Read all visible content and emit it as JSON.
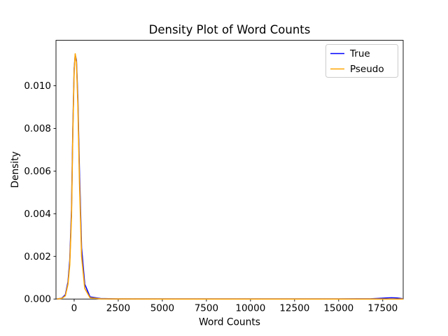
{
  "chart_data": {
    "type": "line",
    "title": "Density Plot of Word Counts",
    "xlabel": "Word Counts",
    "ylabel": "Density",
    "xlim": [
      -1030,
      18660
    ],
    "ylim": [
      0,
      0.01213
    ],
    "grid": false,
    "legend_position": "upper right",
    "xticks": {
      "values": [
        0,
        2500,
        5000,
        7500,
        10000,
        12500,
        15000,
        17500
      ],
      "labels": [
        "0",
        "2500",
        "5000",
        "7500",
        "10000",
        "12500",
        "15000",
        "17500"
      ]
    },
    "yticks": {
      "values": [
        0.0,
        0.002,
        0.004,
        0.006,
        0.008,
        0.01
      ],
      "labels": [
        "0.000",
        "0.002",
        "0.004",
        "0.006",
        "0.008",
        "0.010"
      ]
    },
    "series": [
      {
        "name": "True",
        "color": "#0000ff",
        "x": [
          -980,
          -700,
          -500,
          -350,
          -250,
          -150,
          -75,
          0,
          60,
          130,
          210,
          300,
          420,
          600,
          900,
          1500,
          2500,
          5000,
          7500,
          10000,
          12500,
          15000,
          16800,
          17300,
          17700,
          18000,
          18300,
          18500,
          18660
        ],
        "y": [
          0.0,
          4e-05,
          0.0002,
          0.0008,
          0.0018,
          0.0042,
          0.008,
          0.0108,
          0.01145,
          0.0112,
          0.0094,
          0.006,
          0.0024,
          0.0007,
          0.0001,
          2e-05,
          6e-06,
          3e-06,
          3e-06,
          3e-06,
          3e-06,
          4e-06,
          1e-05,
          3e-05,
          5e-05,
          6e-05,
          5e-05,
          3e-05,
          1e-05
        ]
      },
      {
        "name": "Pseudo",
        "color": "#ffa500",
        "x": [
          -980,
          -700,
          -500,
          -350,
          -250,
          -150,
          -75,
          0,
          60,
          130,
          210,
          300,
          420,
          600,
          900,
          1500,
          2500,
          5000,
          7500,
          10000,
          12500,
          15000,
          17500,
          18660
        ],
        "y": [
          0.0,
          3e-05,
          0.00015,
          0.0007,
          0.0016,
          0.0039,
          0.0078,
          0.0107,
          0.0115,
          0.0111,
          0.0091,
          0.0055,
          0.002,
          0.0005,
          6e-05,
          1e-05,
          4e-06,
          2e-06,
          2e-06,
          2e-06,
          2e-06,
          2e-06,
          2e-06,
          2e-06
        ]
      }
    ]
  }
}
